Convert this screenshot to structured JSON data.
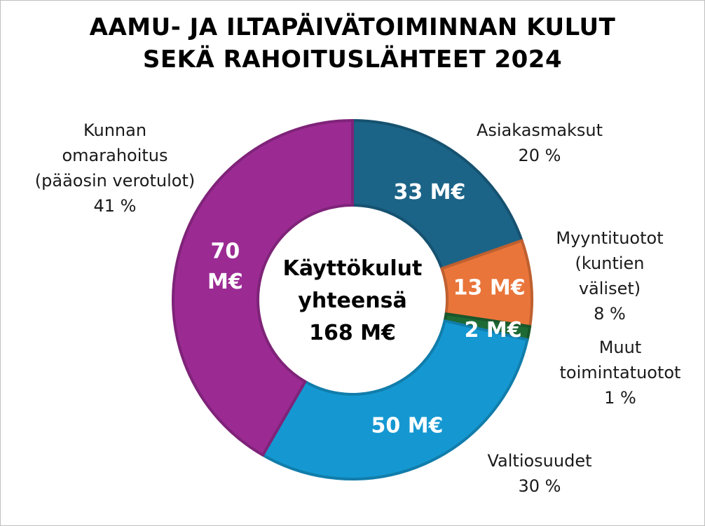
{
  "title_line1": "AAMU- JA ILTAPÄIVÄTOIMINNAN KULUT",
  "title_line2": "SEKÄ RAHOITUSLÄHTEET 2024",
  "colors": {
    "asiakasmaksut": "#1b6488",
    "myyntituotot": "#e9753a",
    "muut": "#1e6a35",
    "valtiosuudet": "#1598d1",
    "kunnan": "#9b2b93"
  },
  "chart_data": {
    "type": "pie",
    "donut": true,
    "title": "AAMU- JA ILTAPÄIVÄTOIMINNAN KULUT SEKÄ RAHOITUSLÄHTEET 2024",
    "center_label": [
      "Käyttökulut",
      "yhteensä",
      "168 M€"
    ],
    "unit": "M€",
    "slices": [
      {
        "key": "asiakasmaksut",
        "label_lines": [
          "Asiakasmaksut"
        ],
        "percent_label": "20 %",
        "value": 33,
        "value_label": "33 M€",
        "color": "#1b6488"
      },
      {
        "key": "myyntituotot",
        "label_lines": [
          "Myyntituotot",
          "(kuntien",
          "väliset)"
        ],
        "percent_label": "8 %",
        "value": 13,
        "value_label": "13 M€",
        "color": "#e9753a"
      },
      {
        "key": "muut",
        "label_lines": [
          "Muut",
          "toimintatuotot"
        ],
        "percent_label": "1 %",
        "value": 2,
        "value_label": "2 M€",
        "color": "#1e6a35"
      },
      {
        "key": "valtiosuudet",
        "label_lines": [
          "Valtiosuudet"
        ],
        "percent_label": "30 %",
        "value": 50,
        "value_label": "50 M€",
        "color": "#1598d1"
      },
      {
        "key": "kunnan",
        "label_lines": [
          "Kunnan",
          "omarahoitus",
          "(pääosin verotulot)"
        ],
        "percent_label": "41 %",
        "value": 70,
        "value_label_lines": [
          "70",
          "M€"
        ],
        "color": "#9b2b93"
      }
    ]
  }
}
